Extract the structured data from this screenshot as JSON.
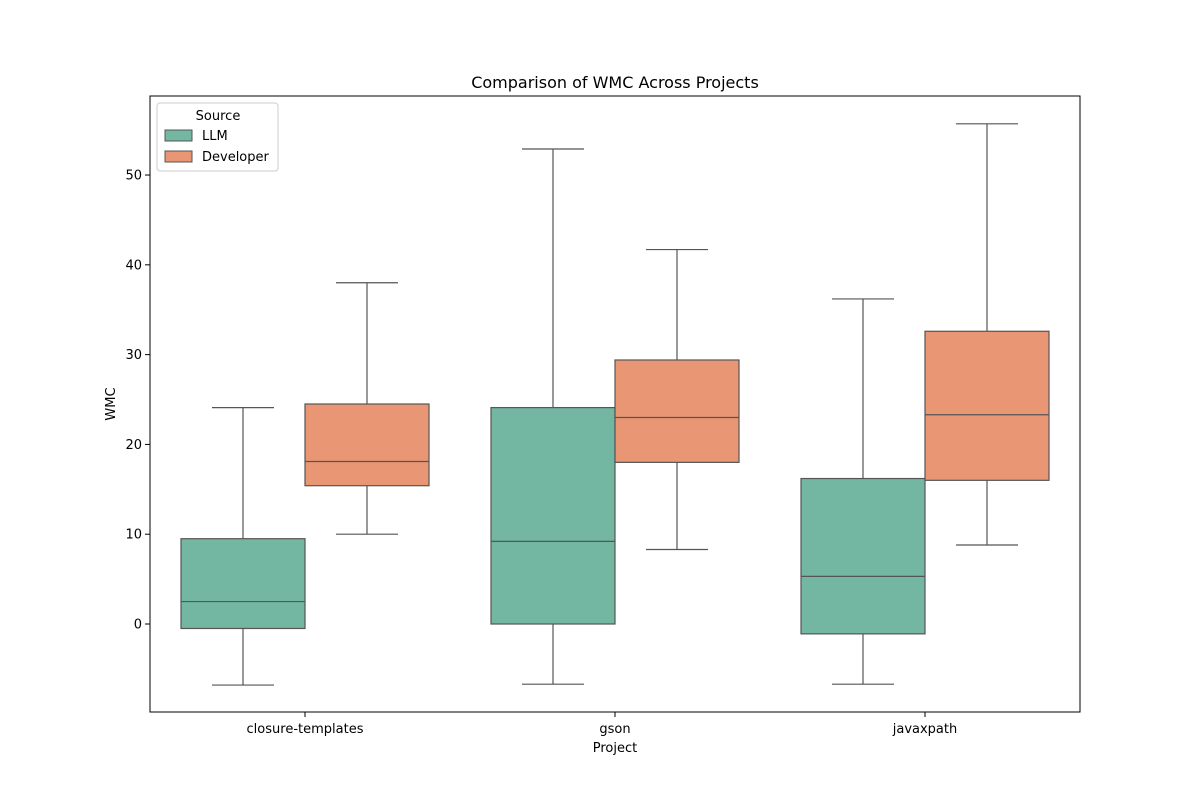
{
  "chart_data": {
    "type": "box",
    "title": "Comparison of WMC Across Projects",
    "xlabel": "Project",
    "ylabel": "WMC",
    "categories": [
      "closure-templates",
      "gson",
      "javaxpath"
    ],
    "ylim": [
      -9.8,
      58.8
    ],
    "yticks": [
      0,
      10,
      20,
      30,
      40,
      50
    ],
    "ytick_labels": [
      "0",
      "10",
      "20",
      "30",
      "40",
      "50"
    ],
    "legend": {
      "title": "Source",
      "placement": "top-left"
    },
    "series": [
      {
        "name": "LLM",
        "color": "#73b6a1",
        "boxes": [
          {
            "whisker_low": -6.8,
            "q1": -0.5,
            "median": 2.5,
            "q3": 9.5,
            "whisker_high": 24.1
          },
          {
            "whisker_low": -6.7,
            "q1": 0.0,
            "median": 9.2,
            "q3": 24.1,
            "whisker_high": 52.9
          },
          {
            "whisker_low": -6.7,
            "q1": -1.1,
            "median": 5.3,
            "q3": 16.2,
            "whisker_high": 36.2
          }
        ]
      },
      {
        "name": "Developer",
        "color": "#e99675",
        "boxes": [
          {
            "whisker_low": 10.0,
            "q1": 15.4,
            "median": 18.1,
            "q3": 24.5,
            "whisker_high": 38.0
          },
          {
            "whisker_low": 8.3,
            "q1": 18.0,
            "median": 23.0,
            "q3": 29.4,
            "whisker_high": 41.7
          },
          {
            "whisker_low": 8.8,
            "q1": 16.0,
            "median": 23.3,
            "q3": 32.6,
            "whisker_high": 55.7
          }
        ]
      }
    ],
    "line_color": "#555555",
    "grid": false
  }
}
